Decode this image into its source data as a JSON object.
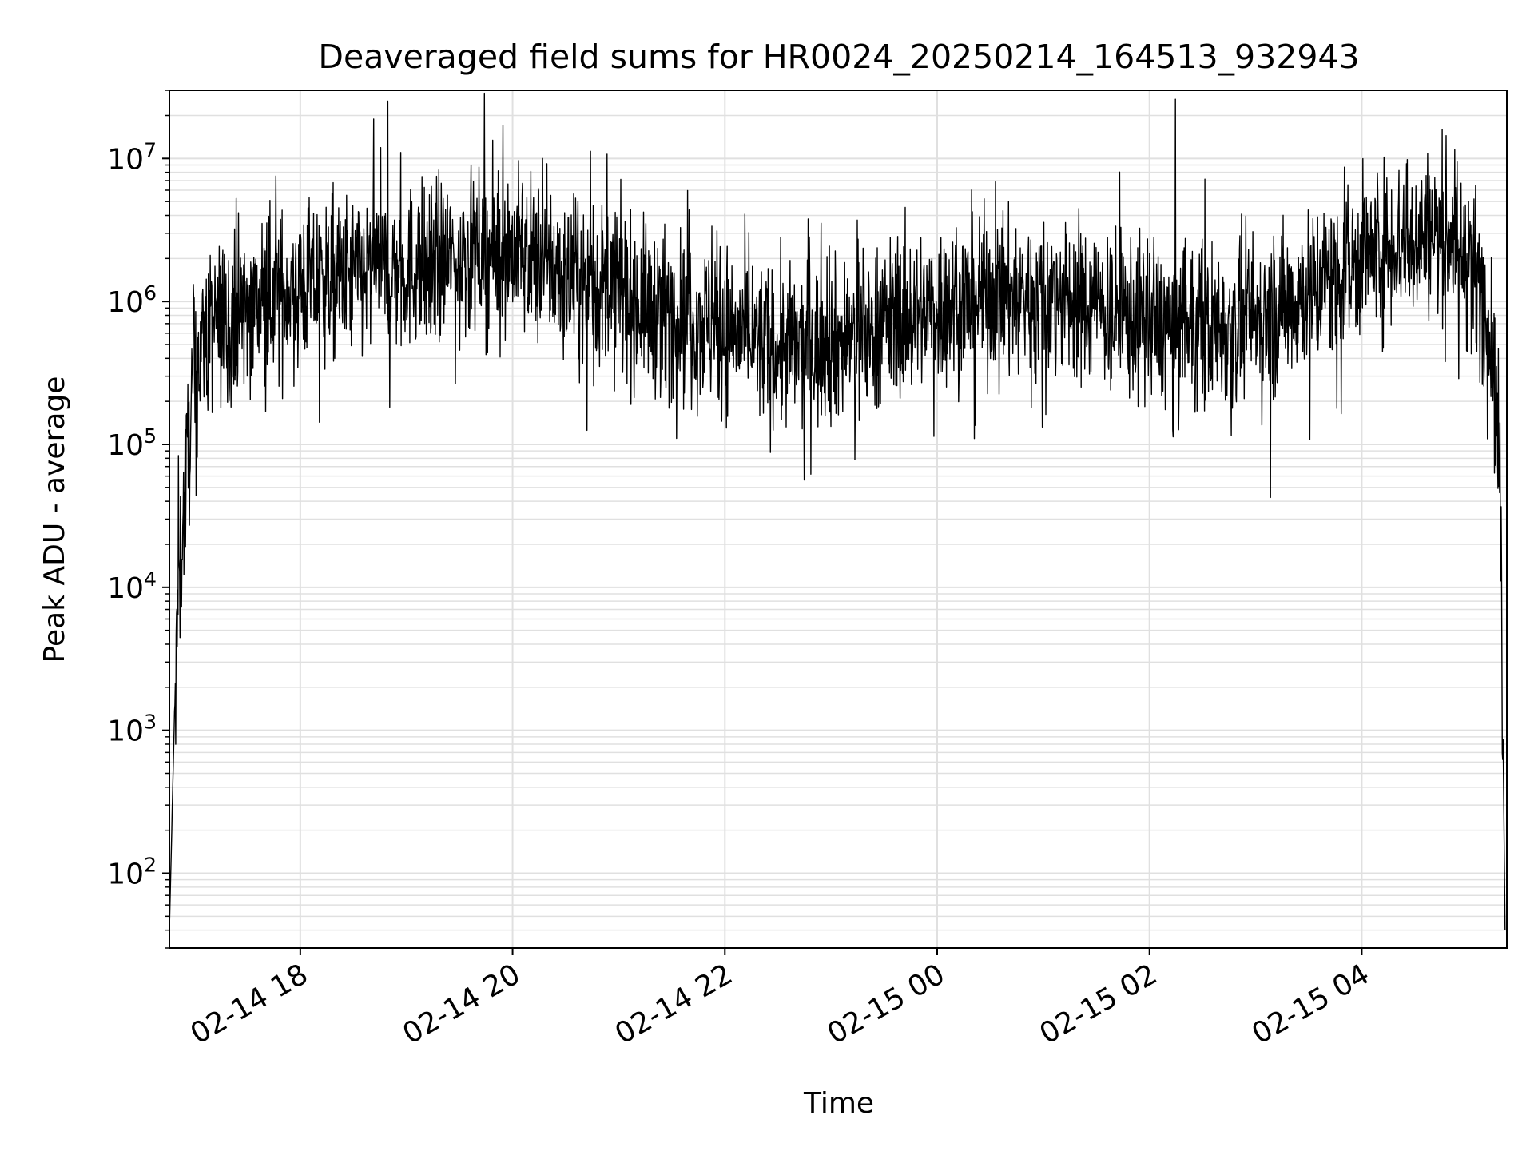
{
  "chart_data": {
    "type": "line",
    "title": "Deaveraged field sums for HR0024_20250214_164513_932943",
    "xlabel": "Time",
    "ylabel": "Peak ADU - average",
    "yscale": "log",
    "ylim": [
      30,
      30000000
    ],
    "xlim": [
      "2025-02-14 16:46",
      "2025-02-15 05:22"
    ],
    "grid": true,
    "line_color": "#000000",
    "grid_color": "#e0e0e0",
    "x_ticks": [
      {
        "value": "2025-02-14 18:00",
        "label": "02-14 18"
      },
      {
        "value": "2025-02-14 20:00",
        "label": "02-14 20"
      },
      {
        "value": "2025-02-14 22:00",
        "label": "02-14 22"
      },
      {
        "value": "2025-02-15 00:00",
        "label": "02-15 00"
      },
      {
        "value": "2025-02-15 02:00",
        "label": "02-15 02"
      },
      {
        "value": "2025-02-15 04:00",
        "label": "02-15 04"
      }
    ],
    "y_ticks": [
      {
        "value": 100,
        "base": "10",
        "exp": "2"
      },
      {
        "value": 1000,
        "base": "10",
        "exp": "3"
      },
      {
        "value": 10000,
        "base": "10",
        "exp": "4"
      },
      {
        "value": 100000,
        "base": "10",
        "exp": "5"
      },
      {
        "value": 1000000,
        "base": "10",
        "exp": "6"
      },
      {
        "value": 10000000,
        "base": "10",
        "exp": "7"
      }
    ],
    "series": [
      {
        "envelope_points": [
          {
            "x": "2025-02-14 16:46",
            "y": 40
          },
          {
            "x": "2025-02-14 16:50",
            "y": 5000
          },
          {
            "x": "2025-02-14 16:55",
            "y": 50000
          },
          {
            "x": "2025-02-14 17:00",
            "y": 300000
          },
          {
            "x": "2025-02-14 17:05",
            "y": 550000
          },
          {
            "x": "2025-02-14 17:20",
            "y": 800000
          },
          {
            "x": "2025-02-14 17:40",
            "y": 1000000
          },
          {
            "x": "2025-02-14 18:00",
            "y": 1300000
          },
          {
            "x": "2025-02-14 18:30",
            "y": 1500000
          },
          {
            "x": "2025-02-14 19:00",
            "y": 1700000
          },
          {
            "x": "2025-02-14 19:30",
            "y": 2000000
          },
          {
            "x": "2025-02-14 20:00",
            "y": 2300000
          },
          {
            "x": "2025-02-14 20:30",
            "y": 1500000
          },
          {
            "x": "2025-02-14 21:00",
            "y": 1100000
          },
          {
            "x": "2025-02-14 21:30",
            "y": 800000
          },
          {
            "x": "2025-02-14 22:00",
            "y": 650000
          },
          {
            "x": "2025-02-14 22:30",
            "y": 450000
          },
          {
            "x": "2025-02-14 23:00",
            "y": 500000
          },
          {
            "x": "2025-02-14 23:30",
            "y": 700000
          },
          {
            "x": "2025-02-15 00:00",
            "y": 900000
          },
          {
            "x": "2025-02-15 00:30",
            "y": 1100000
          },
          {
            "x": "2025-02-15 01:00",
            "y": 1100000
          },
          {
            "x": "2025-02-15 01:30",
            "y": 900000
          },
          {
            "x": "2025-02-15 02:00",
            "y": 700000
          },
          {
            "x": "2025-02-15 02:30",
            "y": 650000
          },
          {
            "x": "2025-02-15 03:00",
            "y": 700000
          },
          {
            "x": "2025-02-15 03:30",
            "y": 1200000
          },
          {
            "x": "2025-02-15 04:00",
            "y": 2000000
          },
          {
            "x": "2025-02-15 04:30",
            "y": 3000000
          },
          {
            "x": "2025-02-15 04:50",
            "y": 3000000
          },
          {
            "x": "2025-02-15 05:05",
            "y": 1500000
          },
          {
            "x": "2025-02-15 05:12",
            "y": 700000
          },
          {
            "x": "2025-02-15 05:16",
            "y": 200000
          },
          {
            "x": "2025-02-15 05:19",
            "y": 10000
          },
          {
            "x": "2025-02-15 05:21",
            "y": 40
          }
        ],
        "scatter_decades": 0.28
      }
    ]
  }
}
